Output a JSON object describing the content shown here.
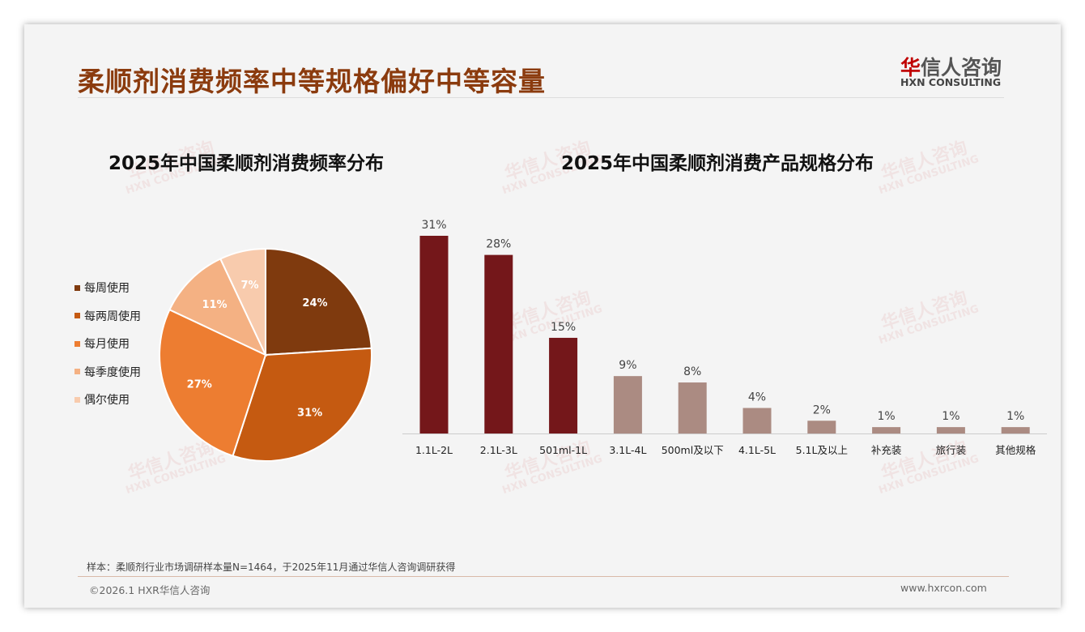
{
  "header": {
    "title": "柔顺剂消费频率中等规格偏好中等容量",
    "logo_cn_red": "华",
    "logo_cn_rest": "信人咨询",
    "logo_en": "HXN CONSULTING"
  },
  "watermark": {
    "cn": "华信人咨询",
    "en": "HXN CONSULTING"
  },
  "chart_data": [
    {
      "type": "pie",
      "title": "2025年中国柔顺剂消费频率分布",
      "categories": [
        "每周使用",
        "每两周使用",
        "每月使用",
        "每季度使用",
        "偶尔使用"
      ],
      "values": [
        24,
        31,
        27,
        11,
        7
      ],
      "labels": [
        "24%",
        "31%",
        "27%",
        "11%",
        "7%"
      ],
      "colors": [
        "#7f3a0e",
        "#c55a11",
        "#ed7d31",
        "#f4b183",
        "#f8cbad"
      ],
      "legend": "left"
    },
    {
      "type": "bar",
      "title": "2025年中国柔顺剂消费产品规格分布",
      "categories": [
        "1.1L-2L",
        "2.1L-3L",
        "501ml-1L",
        "3.1L-4L",
        "500ml及以下",
        "4.1L-5L",
        "5.1L及以上",
        "补充装",
        "旅行装",
        "其他规格"
      ],
      "values": [
        31,
        28,
        15,
        9,
        8,
        4,
        2,
        1,
        1,
        1
      ],
      "labels": [
        "31%",
        "28%",
        "15%",
        "9%",
        "8%",
        "4%",
        "2%",
        "1%",
        "1%",
        "1%"
      ],
      "colors": {
        "highlight": "#74171a",
        "normal": "#ab8b82"
      },
      "highlight_count": 3,
      "ylim": [
        0,
        31
      ]
    }
  ],
  "footer": {
    "note": "样本：柔顺剂行业市场调研样本量N=1464，于2025年11月通过华信人咨询调研获得",
    "copyright": "©2026.1 HXR华信人咨询",
    "site": "www.hxrcon.com"
  }
}
